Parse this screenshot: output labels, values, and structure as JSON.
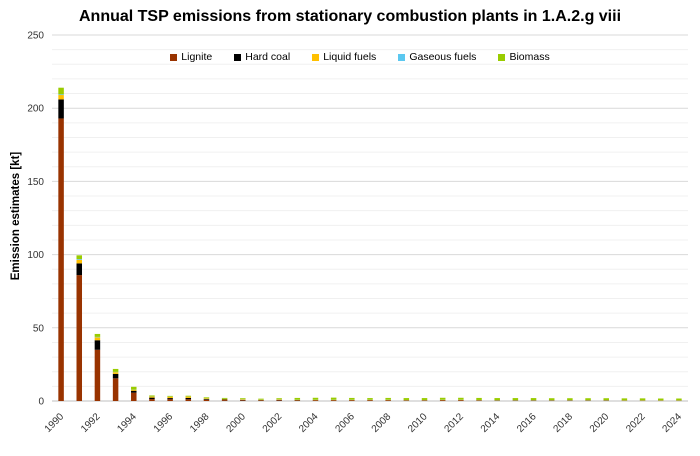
{
  "chart_data": {
    "type": "bar",
    "stacked": true,
    "title": "Annual TSP emissions from stationary combustion plants in 1.A.2.g viii",
    "xlabel": "",
    "ylabel": "Emission estimates [kt]",
    "ylim": [
      0,
      250
    ],
    "yticks": [
      0,
      50,
      100,
      150,
      200,
      250
    ],
    "grid": true,
    "legend": "top",
    "categories": [
      "1990",
      "1991",
      "1992",
      "1993",
      "1994",
      "1995",
      "1996",
      "1997",
      "1998",
      "1999",
      "2000",
      "2001",
      "2002",
      "2003",
      "2004",
      "2005",
      "2006",
      "2007",
      "2008",
      "2009",
      "2010",
      "2011",
      "2012",
      "2013",
      "2014",
      "2015",
      "2016",
      "2017",
      "2018",
      "2019",
      "2020",
      "2021",
      "2022",
      "2023",
      "2024"
    ],
    "xtick_labels": [
      "1990",
      "1992",
      "1994",
      "1996",
      "1998",
      "2000",
      "2002",
      "2004",
      "2006",
      "2008",
      "2010",
      "2012",
      "2014",
      "2016",
      "2018",
      "2020",
      "2022",
      "2024"
    ],
    "series": [
      {
        "name": "Lignite",
        "color": "#993300",
        "values": [
          193,
          86,
          35,
          15.5,
          5.7,
          1.3,
          1.2,
          1.2,
          0.8,
          0.6,
          0.5,
          0.4,
          0.5,
          0.4,
          0.5,
          0.5,
          0.5,
          0.5,
          0.5,
          0.3,
          0.3,
          0.5,
          0.5,
          0.3,
          0.2,
          0.2,
          0.2,
          0.2,
          0.2,
          0.2,
          0.2,
          0.1,
          0.1,
          0.1,
          0.1
        ]
      },
      {
        "name": "Hard coal",
        "color": "#000000",
        "values": [
          13,
          8,
          6.5,
          3,
          1.3,
          1.0,
          0.8,
          0.9,
          0.5,
          0.4,
          0.3,
          0.2,
          0.3,
          0.2,
          0.1,
          0.1,
          0.1,
          0.1,
          0.1,
          0.1,
          0.1,
          0.1,
          0.1,
          0.1,
          0.1,
          0.1,
          0.1,
          0.1,
          0.1,
          0.1,
          0.1,
          0.1,
          0.1,
          0.1,
          0.1
        ]
      },
      {
        "name": "Liquid fuels",
        "color": "#FFC000",
        "values": [
          3,
          2.5,
          2,
          1.2,
          0.7,
          0.7,
          0.9,
          0.9,
          0.5,
          0.4,
          0.4,
          0.3,
          0.3,
          0.2,
          0.2,
          0.2,
          0.2,
          0.2,
          0.2,
          0.2,
          0.2,
          0.2,
          0.2,
          0.2,
          0.2,
          0.2,
          0.2,
          0.2,
          0.2,
          0.2,
          0.2,
          0.2,
          0.2,
          0.2,
          0.2
        ]
      },
      {
        "name": "Gaseous fuels",
        "color": "#5BC8F0",
        "values": [
          0.5,
          0.5,
          0.3,
          0.2,
          0.1,
          0.1,
          0.1,
          0.1,
          0.1,
          0.1,
          0.1,
          0.1,
          0.1,
          0.1,
          0.1,
          0.1,
          0.1,
          0.1,
          0.1,
          0.1,
          0.1,
          0.1,
          0.1,
          0.1,
          0.1,
          0.1,
          0.1,
          0.1,
          0.1,
          0.1,
          0.1,
          0.1,
          0.1,
          0.1,
          0.1
        ]
      },
      {
        "name": "Biomass",
        "color": "#99CC00",
        "values": [
          4.5,
          2.5,
          2,
          2,
          1.9,
          0.7,
          0.5,
          0.5,
          0.6,
          0.6,
          0.6,
          0.6,
          0.7,
          1.2,
          1.3,
          1.4,
          1.2,
          1.1,
          1.2,
          1.3,
          1.3,
          1.3,
          1.3,
          1.4,
          1.4,
          1.4,
          1.4,
          1.3,
          1.3,
          1.3,
          1.3,
          1.3,
          1.3,
          1.2,
          1.2
        ]
      }
    ]
  }
}
